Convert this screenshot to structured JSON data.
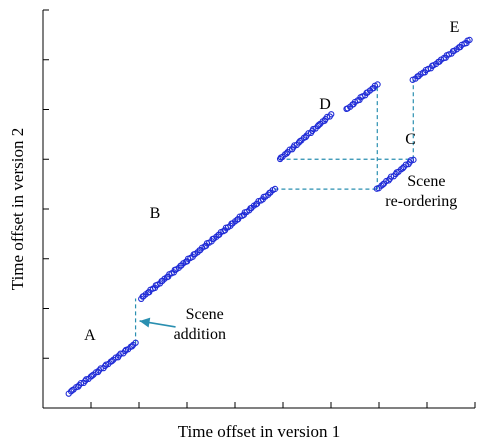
{
  "chart_data": {
    "type": "scatter",
    "xlabel": "Time offset in version 1",
    "ylabel": "Time offset in version 2",
    "x_ticks_count": 9,
    "y_ticks_count": 8,
    "xlim": [
      0,
      8.4
    ],
    "ylim": [
      0,
      8
    ],
    "marker_color": "#1f2bd6",
    "guide_color": "#2a8fb0",
    "segments": [
      {
        "label": "A",
        "x": [
          0.5,
          1.8
        ],
        "y": [
          0.3,
          1.3
        ]
      },
      {
        "label": "B",
        "x": [
          1.9,
          4.5
        ],
        "y": [
          2.2,
          4.4
        ]
      },
      {
        "label": "D",
        "x": [
          4.6,
          5.6
        ],
        "y": [
          5.0,
          5.9
        ]
      },
      {
        "label": "D",
        "x": [
          5.9,
          6.5
        ],
        "y": [
          6.0,
          6.5
        ]
      },
      {
        "label": "C",
        "x": [
          6.5,
          7.2
        ],
        "y": [
          4.4,
          5.0
        ]
      },
      {
        "label": "E",
        "x": [
          7.2,
          8.3
        ],
        "y": [
          6.6,
          7.4
        ]
      }
    ],
    "annotations": [
      {
        "text": "Scene",
        "text2": "addition"
      },
      {
        "text": "Scene",
        "text2": "re-ordering"
      }
    ],
    "grid": false
  }
}
